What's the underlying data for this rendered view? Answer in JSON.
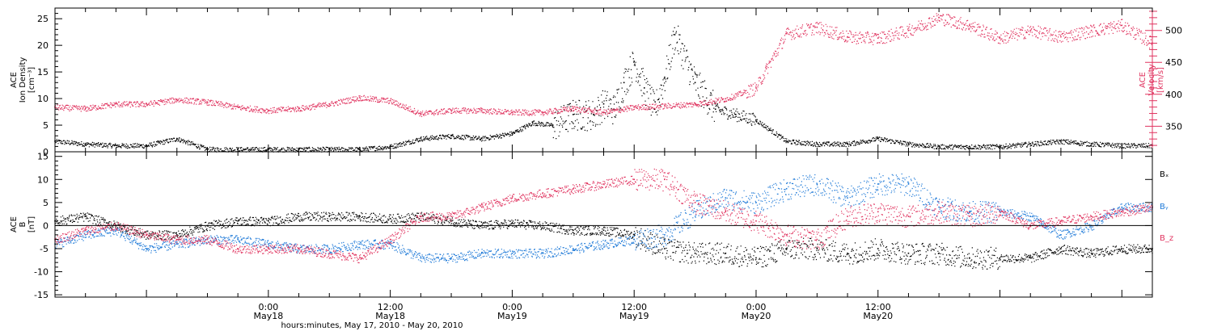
{
  "chart_data": [
    {
      "type": "scatter",
      "panel": "top",
      "ylabel_left": [
        "ACE",
        "Ion Density",
        "[cm⁻³]"
      ],
      "ylabel_right": [
        "ACE",
        "Velocity",
        "[km/s]"
      ],
      "xlim_hours": [
        -21,
        87
      ],
      "ylim_left": [
        0,
        27
      ],
      "ylim_right": [
        310,
        535
      ],
      "left_ticks": [
        0,
        5,
        10,
        15,
        20,
        25
      ],
      "right_ticks": [
        350,
        400,
        450,
        500
      ],
      "colors": {
        "density": "#000000",
        "velocity": "#e0335f"
      },
      "series": [
        {
          "name": "",
          "axis": "left",
          "hours": [
            -21,
            -18,
            -15,
            -12,
            -9,
            -6,
            -3,
            0,
            3,
            6,
            9,
            12,
            15,
            18,
            21,
            24,
            26,
            28,
            30,
            32,
            33,
            34,
            35,
            36,
            37,
            38,
            39,
            40,
            42,
            44,
            46,
            48,
            51,
            54,
            57,
            60,
            63,
            66,
            69,
            72,
            75,
            78,
            81,
            84,
            87
          ],
          "values": [
            2,
            1.5,
            1.2,
            1.2,
            2.5,
            0.5,
            0.5,
            0.5,
            0.5,
            0.5,
            0.5,
            1,
            2.5,
            3,
            2.5,
            3.5,
            5.5,
            5,
            7,
            7,
            9,
            8,
            13,
            17,
            12,
            8,
            14,
            22,
            13,
            8,
            7,
            6,
            2,
            1.5,
            1.5,
            2.5,
            1.5,
            1,
            1,
            1,
            1.5,
            2,
            1.5,
            1.2,
            1.2
          ]
        },
        {
          "name": "",
          "axis": "right",
          "hours": [
            -21,
            -18,
            -15,
            -12,
            -9,
            -6,
            -3,
            0,
            3,
            6,
            9,
            12,
            15,
            18,
            21,
            24,
            27,
            30,
            33,
            36,
            39,
            42,
            45,
            48,
            49,
            51,
            54,
            57,
            60,
            63,
            66,
            69,
            72,
            75,
            78,
            81,
            84,
            87
          ],
          "values": [
            380,
            378,
            385,
            385,
            392,
            388,
            380,
            375,
            378,
            385,
            395,
            390,
            370,
            375,
            375,
            372,
            372,
            378,
            372,
            380,
            382,
            385,
            393,
            410,
            440,
            495,
            505,
            490,
            488,
            500,
            520,
            508,
            488,
            500,
            490,
            500,
            508,
            480
          ]
        }
      ]
    },
    {
      "type": "scatter",
      "panel": "bottom",
      "ylabel_left": [
        "ACE",
        "B",
        "[nT]"
      ],
      "xlim_hours": [
        -21,
        87
      ],
      "ylim": [
        -15.5,
        16
      ],
      "ticks": [
        -15,
        -10,
        -5,
        0,
        5,
        10,
        15
      ],
      "zero_line": true,
      "legend": [
        {
          "name": "Bₓ",
          "color": "#000000"
        },
        {
          "name": "Bᵧ",
          "color": "#1f7ad8"
        },
        {
          "name": "B_z",
          "color": "#e0335f"
        }
      ],
      "series": [
        {
          "name": "Bx",
          "hours": [
            -21,
            -18,
            -15,
            -12,
            -9,
            -6,
            -3,
            0,
            3,
            6,
            9,
            12,
            15,
            18,
            21,
            24,
            27,
            30,
            33,
            36,
            39,
            42,
            45,
            48,
            51,
            54,
            57,
            60,
            63,
            66,
            69,
            72,
            75,
            78,
            81,
            84,
            87
          ],
          "values": [
            1,
            2,
            0,
            -2,
            -2,
            0,
            1,
            1,
            2,
            2,
            2,
            1.5,
            2,
            1,
            0,
            0.5,
            0,
            -1,
            -1,
            -2,
            -5,
            -6,
            -6,
            -7,
            -5,
            -5,
            -6,
            -5,
            -6,
            -6,
            -7,
            -7,
            -7,
            -5,
            -6,
            -5,
            -5
          ]
        },
        {
          "name": "By",
          "hours": [
            -21,
            -18,
            -15,
            -12,
            -9,
            -6,
            -3,
            0,
            3,
            6,
            9,
            12,
            15,
            18,
            21,
            24,
            27,
            30,
            33,
            36,
            39,
            42,
            45,
            48,
            51,
            54,
            57,
            60,
            63,
            66,
            69,
            72,
            75,
            78,
            81,
            84,
            87
          ],
          "values": [
            -4,
            -2,
            -1,
            -5,
            -4,
            -3,
            -3,
            -4,
            -5,
            -5,
            -4,
            -4,
            -7,
            -7,
            -6,
            -6,
            -6,
            -5,
            -4,
            -3,
            -2,
            3,
            6,
            5,
            8,
            9,
            6,
            9,
            9,
            4,
            3,
            3,
            2,
            -2,
            0,
            4,
            4
          ]
        },
        {
          "name": "Bz",
          "hours": [
            -21,
            -18,
            -15,
            -12,
            -9,
            -6,
            -3,
            0,
            3,
            6,
            9,
            12,
            15,
            18,
            21,
            24,
            27,
            30,
            33,
            36,
            39,
            42,
            45,
            48,
            51,
            54,
            57,
            60,
            63,
            66,
            69,
            72,
            75,
            78,
            81,
            84,
            87
          ],
          "values": [
            -3,
            -1,
            0,
            -2,
            -3,
            -3,
            -5,
            -5,
            -5,
            -6,
            -7,
            -3,
            2,
            2,
            4,
            6,
            7,
            8,
            9,
            10,
            10,
            5,
            3,
            1,
            -2,
            -3,
            2,
            3,
            2,
            3,
            2,
            3,
            0,
            1,
            2,
            3,
            4
          ]
        }
      ]
    }
  ],
  "x_axis": {
    "title": "hours:minutes, May 17, 2010 - May 20, 2010",
    "major_ticks": [
      {
        "hour": 0,
        "time": "0:00",
        "date": "May18"
      },
      {
        "hour": 12,
        "time": "12:00",
        "date": "May18"
      },
      {
        "hour": 24,
        "time": "0:00",
        "date": "May19"
      },
      {
        "hour": 36,
        "time": "12:00",
        "date": "May19"
      },
      {
        "hour": 48,
        "time": "0:00",
        "date": "May20"
      },
      {
        "hour": 60,
        "time": "12:00",
        "date": "May20"
      }
    ]
  }
}
